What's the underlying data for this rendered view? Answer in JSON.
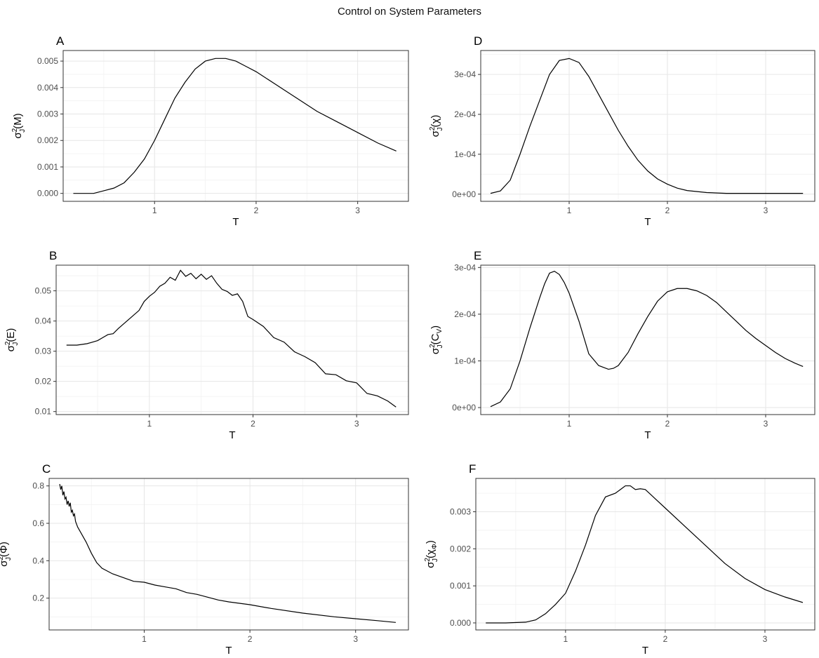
{
  "figure": {
    "title": "Control on System Parameters"
  },
  "chart_data": [
    {
      "id": "A",
      "type": "line",
      "label": "A",
      "xlabel": "T",
      "ylabel_base": "σ",
      "ylabel_sup": "2",
      "ylabel_sub": "J",
      "ylabel_paren": "(M)",
      "xlim": [
        0.1,
        3.5
      ],
      "ylim": [
        -0.0003,
        0.0054
      ],
      "xticks": [
        1,
        2,
        3
      ],
      "xtick_labels": [
        "1",
        "2",
        "3"
      ],
      "yticks": [
        0,
        0.001,
        0.002,
        0.003,
        0.004,
        0.005
      ],
      "ytick_labels": [
        "0.000",
        "0.001",
        "0.002",
        "0.003",
        "0.004",
        "0.005"
      ],
      "grid": true,
      "series": [
        {
          "x": [
            0.2,
            0.4,
            0.5,
            0.6,
            0.7,
            0.8,
            0.9,
            1.0,
            1.1,
            1.2,
            1.3,
            1.4,
            1.5,
            1.6,
            1.7,
            1.8,
            1.9,
            2.0,
            2.2,
            2.4,
            2.6,
            2.8,
            3.0,
            3.2,
            3.38
          ],
          "y": [
            0,
            0,
            0.0001,
            0.0002,
            0.0004,
            0.0008,
            0.0013,
            0.002,
            0.0028,
            0.0036,
            0.0042,
            0.0047,
            0.005,
            0.0051,
            0.0051,
            0.005,
            0.0048,
            0.0046,
            0.0041,
            0.0036,
            0.0031,
            0.0027,
            0.0023,
            0.0019,
            0.0016
          ]
        }
      ]
    },
    {
      "id": "B",
      "type": "line",
      "label": "B",
      "xlabel": "T",
      "ylabel_base": "σ",
      "ylabel_sup": "2",
      "ylabel_sub": "J",
      "ylabel_paren": "(E)",
      "xlim": [
        0.1,
        3.5
      ],
      "ylim": [
        0.009,
        0.0585
      ],
      "xticks": [
        1,
        2,
        3
      ],
      "xtick_labels": [
        "1",
        "2",
        "3"
      ],
      "yticks": [
        0.01,
        0.02,
        0.03,
        0.04,
        0.05
      ],
      "ytick_labels": [
        "0.01",
        "0.02",
        "0.03",
        "0.04",
        "0.05"
      ],
      "grid": true,
      "series": [
        {
          "x": [
            0.2,
            0.3,
            0.4,
            0.5,
            0.55,
            0.6,
            0.65,
            0.7,
            0.8,
            0.9,
            0.95,
            1.0,
            1.05,
            1.1,
            1.15,
            1.2,
            1.25,
            1.3,
            1.35,
            1.4,
            1.45,
            1.5,
            1.55,
            1.6,
            1.65,
            1.7,
            1.75,
            1.8,
            1.85,
            1.9,
            1.95,
            2.0,
            2.1,
            2.2,
            2.3,
            2.4,
            2.5,
            2.6,
            2.7,
            2.8,
            2.9,
            3.0,
            3.1,
            3.2,
            3.3,
            3.38
          ],
          "y": [
            0.032,
            0.032,
            0.0325,
            0.0335,
            0.0345,
            0.0355,
            0.0358,
            0.0375,
            0.0405,
            0.0435,
            0.0465,
            0.0482,
            0.0495,
            0.0515,
            0.0525,
            0.0545,
            0.0535,
            0.0568,
            0.0548,
            0.0558,
            0.054,
            0.0555,
            0.0538,
            0.055,
            0.0525,
            0.0505,
            0.0498,
            0.0485,
            0.049,
            0.0465,
            0.0415,
            0.0405,
            0.0382,
            0.0345,
            0.033,
            0.0298,
            0.0282,
            0.0262,
            0.0225,
            0.0222,
            0.0202,
            0.0195,
            0.016,
            0.0152,
            0.0135,
            0.0115
          ]
        }
      ]
    },
    {
      "id": "C",
      "type": "line",
      "label": "C",
      "xlabel": "T",
      "ylabel_base": "σ",
      "ylabel_sup": "2",
      "ylabel_sub": "J",
      "ylabel_paren": "(Φ)",
      "xlim": [
        0.1,
        3.5
      ],
      "ylim": [
        0.03,
        0.84
      ],
      "xticks": [
        1,
        2,
        3
      ],
      "xtick_labels": [
        "1",
        "2",
        "3"
      ],
      "yticks": [
        0.2,
        0.4,
        0.6,
        0.8
      ],
      "ytick_labels": [
        "0.2",
        "0.4",
        "0.6",
        "0.8"
      ],
      "grid": true,
      "series": [
        {
          "x": [
            0.2,
            0.21,
            0.22,
            0.23,
            0.24,
            0.25,
            0.26,
            0.27,
            0.28,
            0.29,
            0.3,
            0.31,
            0.32,
            0.33,
            0.34,
            0.35,
            0.37,
            0.4,
            0.45,
            0.5,
            0.55,
            0.6,
            0.7,
            0.8,
            0.9,
            1.0,
            1.1,
            1.2,
            1.3,
            1.4,
            1.5,
            1.6,
            1.7,
            1.8,
            2.0,
            2.2,
            2.5,
            2.8,
            3.0,
            3.2,
            3.38
          ],
          "y": [
            0.81,
            0.78,
            0.8,
            0.75,
            0.77,
            0.73,
            0.74,
            0.7,
            0.72,
            0.69,
            0.71,
            0.66,
            0.67,
            0.64,
            0.65,
            0.61,
            0.58,
            0.55,
            0.5,
            0.44,
            0.39,
            0.36,
            0.33,
            0.31,
            0.29,
            0.285,
            0.27,
            0.26,
            0.25,
            0.23,
            0.22,
            0.205,
            0.19,
            0.18,
            0.165,
            0.145,
            0.12,
            0.1,
            0.09,
            0.08,
            0.07
          ]
        }
      ]
    },
    {
      "id": "D",
      "type": "line",
      "label": "D",
      "xlabel": "T",
      "ylabel_base": "σ",
      "ylabel_sup": "2",
      "ylabel_sub": "J",
      "ylabel_paren": "(χ)",
      "xlim": [
        0.1,
        3.5
      ],
      "ylim": [
        -1.8e-05,
        0.00036
      ],
      "xticks": [
        1,
        2,
        3
      ],
      "xtick_labels": [
        "1",
        "2",
        "3"
      ],
      "yticks": [
        0,
        0.0001,
        0.0002,
        0.0003
      ],
      "ytick_labels": [
        "0e+00",
        "1e-04",
        "2e-04",
        "3e-04"
      ],
      "grid": true,
      "series": [
        {
          "x": [
            0.2,
            0.3,
            0.4,
            0.5,
            0.6,
            0.7,
            0.8,
            0.9,
            1.0,
            1.1,
            1.2,
            1.3,
            1.4,
            1.5,
            1.6,
            1.7,
            1.8,
            1.9,
            2.0,
            2.1,
            2.2,
            2.4,
            2.6,
            2.8,
            3.0,
            3.2,
            3.38
          ],
          "y": [
            2e-06,
            8e-06,
            3.5e-05,
            0.0001,
            0.00017,
            0.000235,
            0.0003,
            0.000335,
            0.00034,
            0.00033,
            0.000295,
            0.00025,
            0.000205,
            0.00016,
            0.00012,
            8.5e-05,
            5.8e-05,
            3.8e-05,
            2.5e-05,
            1.5e-05,
            9e-06,
            4e-06,
            2e-06,
            2e-06,
            2e-06,
            2e-06,
            2e-06
          ]
        }
      ]
    },
    {
      "id": "E",
      "type": "line",
      "label": "E",
      "xlabel": "T",
      "ylabel_base": "σ",
      "ylabel_sup": "2",
      "ylabel_sub": "J",
      "ylabel_paren": "(C",
      "ylabel_inner_sub": "V",
      "ylabel_close": ")",
      "xlim": [
        0.1,
        3.5
      ],
      "ylim": [
        -1.5e-05,
        0.000305
      ],
      "xticks": [
        1,
        2,
        3
      ],
      "xtick_labels": [
        "1",
        "2",
        "3"
      ],
      "yticks": [
        0,
        0.0001,
        0.0002,
        0.0003
      ],
      "ytick_labels": [
        "0e+00",
        "1e-04",
        "2e-04",
        "3e-04"
      ],
      "grid": true,
      "series": [
        {
          "x": [
            0.2,
            0.3,
            0.4,
            0.5,
            0.6,
            0.7,
            0.75,
            0.8,
            0.85,
            0.9,
            0.95,
            1.0,
            1.1,
            1.2,
            1.3,
            1.4,
            1.45,
            1.5,
            1.6,
            1.7,
            1.8,
            1.9,
            2.0,
            2.1,
            2.2,
            2.3,
            2.4,
            2.5,
            2.6,
            2.7,
            2.8,
            2.9,
            3.0,
            3.1,
            3.2,
            3.3,
            3.38
          ],
          "y": [
            2e-06,
            1.2e-05,
            4e-05,
            0.0001,
            0.00017,
            0.000235,
            0.000265,
            0.000288,
            0.000292,
            0.000285,
            0.000268,
            0.000245,
            0.000185,
            0.000115,
            9e-05,
            8.2e-05,
            8.4e-05,
            9e-05,
            0.000118,
            0.000158,
            0.000195,
            0.000228,
            0.000248,
            0.000255,
            0.000255,
            0.00025,
            0.00024,
            0.000225,
            0.000205,
            0.000185,
            0.000165,
            0.000148,
            0.000133,
            0.000118,
            0.000105,
            9.5e-05,
            8.8e-05
          ]
        }
      ]
    },
    {
      "id": "F",
      "type": "line",
      "label": "F",
      "xlabel": "T",
      "ylabel_base": "σ",
      "ylabel_sup": "2",
      "ylabel_sub": "J",
      "ylabel_paren": "(χ",
      "ylabel_inner_sub": "Φ",
      "ylabel_close": ")",
      "xlim": [
        0.1,
        3.5
      ],
      "ylim": [
        -0.00019,
        0.0039
      ],
      "xticks": [
        1,
        2,
        3
      ],
      "xtick_labels": [
        "1",
        "2",
        "3"
      ],
      "yticks": [
        0,
        0.001,
        0.002,
        0.003
      ],
      "ytick_labels": [
        "0.000",
        "0.001",
        "0.002",
        "0.003"
      ],
      "grid": true,
      "series": [
        {
          "x": [
            0.2,
            0.4,
            0.6,
            0.7,
            0.8,
            0.9,
            1.0,
            1.1,
            1.2,
            1.3,
            1.4,
            1.5,
            1.55,
            1.6,
            1.65,
            1.7,
            1.75,
            1.8,
            1.9,
            2.0,
            2.2,
            2.4,
            2.6,
            2.8,
            3.0,
            3.2,
            3.38
          ],
          "y": [
            0,
            0,
            2e-05,
            8e-05,
            0.00025,
            0.0005,
            0.0008,
            0.0014,
            0.0021,
            0.0029,
            0.0034,
            0.0035,
            0.0036,
            0.0037,
            0.0037,
            0.0036,
            0.00362,
            0.0036,
            0.00335,
            0.0031,
            0.0026,
            0.0021,
            0.0016,
            0.0012,
            0.0009,
            0.0007,
            0.00055
          ]
        }
      ]
    }
  ]
}
